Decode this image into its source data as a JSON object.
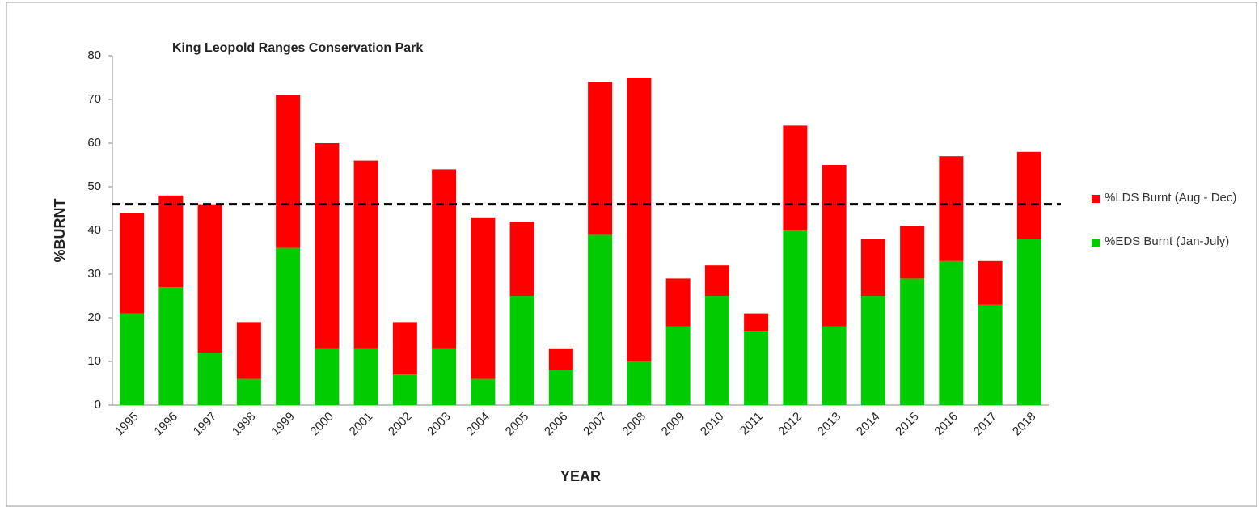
{
  "chart_data": {
    "type": "stacked_bar",
    "title": "King Leopold Ranges Conservation Park",
    "xlabel": "YEAR",
    "ylabel": "%BURNT",
    "categories": [
      "1995",
      "1996",
      "1997",
      "1998",
      "1999",
      "2000",
      "2001",
      "2002",
      "2003",
      "2004",
      "2005",
      "2006",
      "2007",
      "2008",
      "2009",
      "2010",
      "2011",
      "2012",
      "2013",
      "2014",
      "2015",
      "2016",
      "2017",
      "2018"
    ],
    "series": [
      {
        "name": "%EDS Burnt (Jan-July)",
        "color": "#00cc00",
        "values": [
          21,
          27,
          12,
          6,
          36,
          13,
          13,
          7,
          13,
          6,
          25,
          8,
          39,
          10,
          18,
          25,
          17,
          40,
          18,
          25,
          29,
          33,
          23,
          38
        ]
      },
      {
        "name": "%LDS  Burnt (Aug - Dec)",
        "color": "#ff0000",
        "values": [
          23,
          21,
          34,
          13,
          35,
          47,
          43,
          12,
          41,
          37,
          17,
          5,
          35,
          65,
          11,
          7,
          4,
          24,
          37,
          13,
          12,
          24,
          10,
          20
        ]
      }
    ],
    "reference_line": 46,
    "ylim": [
      0,
      80
    ],
    "yticks": [
      0,
      10,
      20,
      30,
      40,
      50,
      60,
      70,
      80
    ],
    "legend": "right"
  }
}
